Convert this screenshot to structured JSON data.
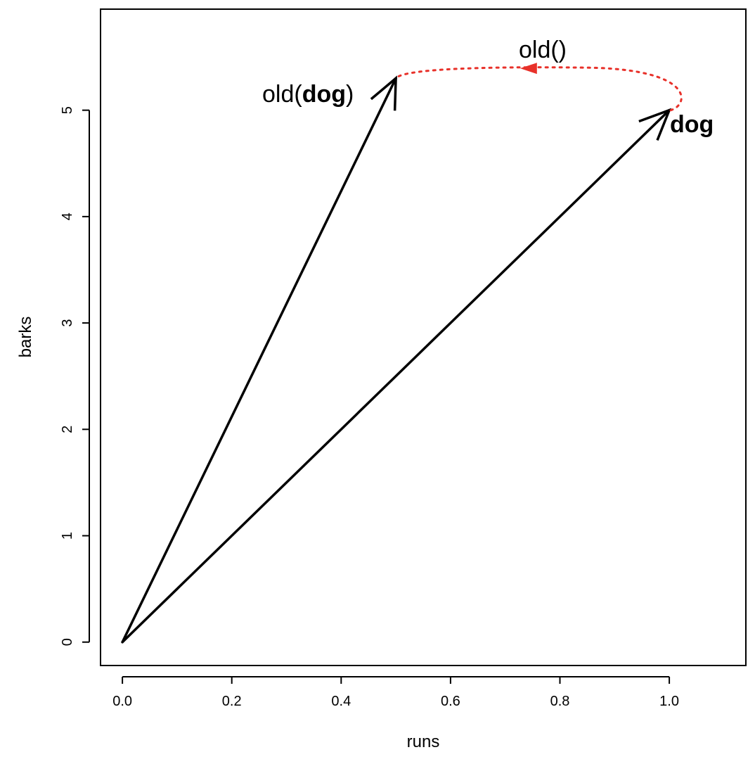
{
  "chart_data": {
    "type": "scatter",
    "title": "",
    "xlabel": "runs",
    "ylabel": "barks",
    "xlim": [
      -0.04,
      1.14
    ],
    "ylim": [
      -0.22,
      5.95
    ],
    "x_ticks": [
      0.0,
      0.2,
      0.4,
      0.6,
      0.8,
      1.0
    ],
    "x_tick_labels": [
      "0.0",
      "0.2",
      "0.4",
      "0.6",
      "0.8",
      "1.0"
    ],
    "y_ticks": [
      0,
      1,
      2,
      3,
      4,
      5
    ],
    "y_tick_labels": [
      "0",
      "1",
      "2",
      "3",
      "4",
      "5"
    ],
    "grid": false,
    "vectors": [
      {
        "from": [
          0,
          0
        ],
        "to": [
          1.0,
          5.0
        ],
        "color": "#000000"
      },
      {
        "from": [
          0,
          0
        ],
        "to": [
          0.5,
          5.3
        ],
        "color": "#000000"
      }
    ],
    "transform_curve": {
      "from": [
        1.0,
        5.0
      ],
      "to": [
        0.5,
        5.3
      ],
      "peak_y": 5.4,
      "rightmost_x": 1.03,
      "style": "dotted",
      "color": "#e8312a",
      "arrow_at_x": 0.74
    },
    "annotations": {
      "dog_label": "dog",
      "old_dog_prefix": "old(",
      "old_dog_bold": "dog",
      "old_dog_suffix": ")",
      "old_func_label": "old()"
    }
  }
}
